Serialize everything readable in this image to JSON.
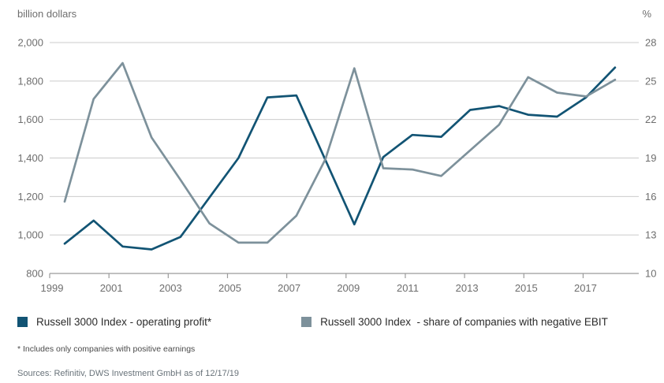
{
  "axis_units": {
    "left": "billion dollars",
    "right": "%"
  },
  "legend": [
    {
      "label": "Russell 3000 Index - operating profit*",
      "color": "#125474"
    },
    {
      "label": "Russell 3000 Index  - share of companies with negative EBIT",
      "color": "#7d919b"
    }
  ],
  "footnote": "* Includes only companies with positive earnings",
  "sources": "Sources: Refinitiv, DWS Investment GmbH as of 12/17/19",
  "chart_data": {
    "type": "line",
    "title": "",
    "x": [
      1999,
      2000,
      2001,
      2002,
      2003,
      2004,
      2005,
      2006,
      2007,
      2008,
      2009,
      2010,
      2011,
      2012,
      2013,
      2014,
      2015,
      2016,
      2017,
      2018
    ],
    "x_ticks": [
      1999,
      2001,
      2003,
      2005,
      2007,
      2009,
      2011,
      2013,
      2015,
      2017
    ],
    "grid": true,
    "legend_position": "bottom",
    "left_axis": {
      "unit": "billion dollars",
      "min": 800,
      "max": 2000,
      "ticks": [
        {
          "value": 2000,
          "label": "2,000"
        },
        {
          "value": 1800,
          "label": "1,800"
        },
        {
          "value": 1600,
          "label": "1,600"
        },
        {
          "value": 1400,
          "label": "1,400"
        },
        {
          "value": 1200,
          "label": "1,200"
        },
        {
          "value": 1000,
          "label": "1,000"
        },
        {
          "value": 800,
          "label": "800"
        }
      ]
    },
    "right_axis": {
      "unit": "%",
      "min": 10,
      "max": 28,
      "ticks": [
        "28",
        "25",
        "22",
        "19",
        "16",
        "13",
        "10"
      ]
    },
    "series": [
      {
        "name": "Russell 3000 Index - operating profit*",
        "axis": "left",
        "unit": "billion dollars",
        "color": "#125474",
        "values": [
          955,
          1075,
          940,
          925,
          990,
          1195,
          1400,
          1715,
          1725,
          1390,
          1055,
          1405,
          1520,
          1510,
          1650,
          1670,
          1625,
          1615,
          1715,
          1870
        ]
      },
      {
        "name": "Russell 3000 Index - share of companies with negative EBIT",
        "axis": "right",
        "unit": "%",
        "color": "#7d919b",
        "values": [
          15.6,
          23.6,
          26.4,
          20.6,
          17.3,
          13.9,
          12.4,
          12.4,
          14.5,
          18.9,
          26.0,
          18.2,
          18.1,
          17.6,
          19.6,
          21.6,
          25.3,
          24.1,
          23.8,
          25.1
        ]
      }
    ],
    "style": {
      "grid_color": "#cbcbcb",
      "axis_color": "#9b9b9b",
      "tick_text_color": "#6e6e6e"
    }
  }
}
